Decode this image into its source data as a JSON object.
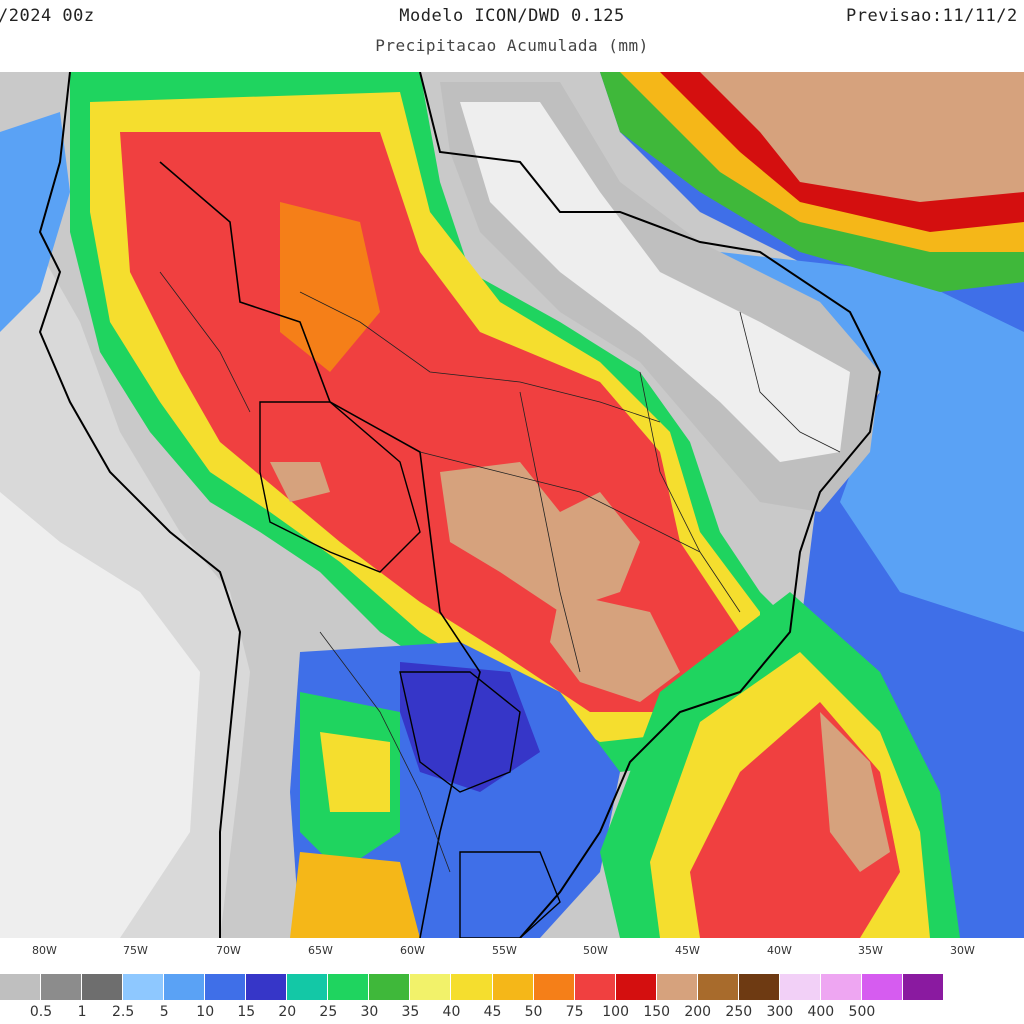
{
  "header": {
    "left": "/2024 00z",
    "center": "Modelo ICON/DWD 0.125",
    "right": "Previsao:11/11/2",
    "subtitle": "Precipitacao Acumulada (mm)"
  },
  "longitude_labels": [
    "80W",
    "75W",
    "70W",
    "65W",
    "60W",
    "55W",
    "50W",
    "45W",
    "40W",
    "35W",
    "30W"
  ],
  "legend": {
    "labels": [
      "0.5",
      "1",
      "2.5",
      "5",
      "10",
      "15",
      "20",
      "25",
      "30",
      "35",
      "40",
      "45",
      "50",
      "75",
      "100",
      "150",
      "200",
      "250",
      "300",
      "400",
      "500"
    ],
    "colors": [
      "#bfbfbf",
      "#8c8c8c",
      "#6e6e6e",
      "#8ec8ff",
      "#5aa2f5",
      "#3f6fe8",
      "#3636c8",
      "#13c8a6",
      "#1fd45f",
      "#3fb83a",
      "#f2f26a",
      "#f5de2e",
      "#f5b718",
      "#f57f18",
      "#f04040",
      "#d40f0f",
      "#d6a27d",
      "#a86b2c",
      "#6e3a12",
      "#f2d0f7",
      "#eea6f2",
      "#d65cf0",
      "#8a1aa0"
    ]
  },
  "map": {
    "description_colors": {
      "ocean": "#3f6fe8",
      "dry": "#c9c9c9",
      "heavy": "#f04040",
      "extreme": "#d6a27d"
    }
  }
}
